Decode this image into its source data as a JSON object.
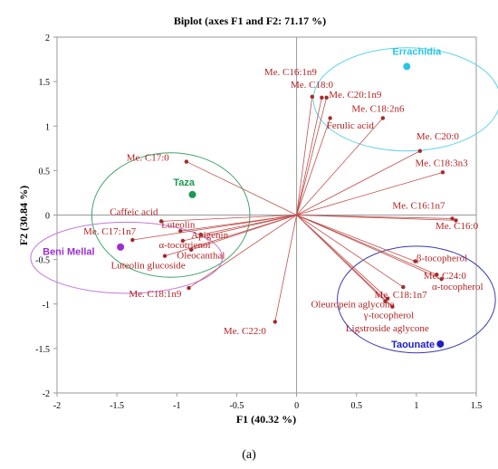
{
  "chart_data": {
    "type": "scatter",
    "title": "Biplot (axes F1 and F2: 71.17 %)",
    "xlabel": "F1 (40.32 %)",
    "ylabel": "F2 (30.84 %)",
    "xlim": [
      -2,
      1.5
    ],
    "ylim": [
      -2,
      2
    ],
    "xticks": [
      -2,
      -1.5,
      -1,
      -0.5,
      0,
      0.5,
      1,
      1.5
    ],
    "yticks": [
      -2,
      -1.5,
      -1,
      -0.5,
      0,
      0.5,
      1,
      1.5,
      2
    ],
    "grid": false,
    "caption": "(a)",
    "variables": [
      {
        "label": "Me. C16:1n9",
        "x": 0.13,
        "y": 1.33,
        "lx": -0.27,
        "ly": 1.57
      },
      {
        "label": "Me. C18:0",
        "x": 0.21,
        "y": 1.32,
        "lx": -0.05,
        "ly": 1.43
      },
      {
        "label": "Me. C20:1n9",
        "x": 0.25,
        "y": 1.32,
        "lx": 0.27,
        "ly": 1.32
      },
      {
        "label": "Me. C18:2n6",
        "x": 0.72,
        "y": 1.09,
        "lx": 0.46,
        "ly": 1.16
      },
      {
        "label": "Ferulic acid",
        "x": 0.28,
        "y": 1.09,
        "lx": 0.25,
        "ly": 0.97
      },
      {
        "label": "Me. C20:0",
        "x": 1.03,
        "y": 0.72,
        "lx": 1.0,
        "ly": 0.85
      },
      {
        "label": "Me. C18:3n3",
        "x": 1.22,
        "y": 0.48,
        "lx": 0.99,
        "ly": 0.55
      },
      {
        "label": "Me. C16:1n7",
        "x": 1.3,
        "y": -0.04,
        "lx": 0.8,
        "ly": 0.07
      },
      {
        "label": "Me. C16:0",
        "x": 1.33,
        "y": -0.06,
        "lx": 1.16,
        "ly": -0.16
      },
      {
        "label": "β-tocopherol",
        "x": 0.99,
        "y": -0.52,
        "lx": 1.0,
        "ly": -0.52
      },
      {
        "label": "Me. C24:0",
        "x": 1.17,
        "y": -0.67,
        "lx": 1.06,
        "ly": -0.72
      },
      {
        "label": "α-tocopherol",
        "x": 1.21,
        "y": -0.72,
        "lx": 1.13,
        "ly": -0.84
      },
      {
        "label": "Me. C18:1n7",
        "x": 0.89,
        "y": -0.81,
        "lx": 0.65,
        "ly": -0.93
      },
      {
        "label": "Oleuropein aglycone",
        "x": 0.76,
        "y": -0.94,
        "lx": 0.12,
        "ly": -1.04
      },
      {
        "label": "γ-tocopherol",
        "x": 0.8,
        "y": -1.03,
        "lx": 0.56,
        "ly": -1.16
      },
      {
        "label": "Ligstroside aglycone",
        "x": 0.74,
        "y": -0.97,
        "lx": 0.41,
        "ly": -1.31
      },
      {
        "label": "Me. C22:0",
        "x": -0.18,
        "y": -1.2,
        "lx": -0.61,
        "ly": -1.34
      },
      {
        "label": "Me. C18:1n9",
        "x": -0.9,
        "y": -0.82,
        "lx": -1.4,
        "ly": -0.92
      },
      {
        "label": "Me. C17:0",
        "x": -0.92,
        "y": 0.6,
        "lx": -1.42,
        "ly": 0.61
      },
      {
        "label": "Caffeic acid",
        "x": -1.13,
        "y": -0.07,
        "lx": -1.56,
        "ly": 0.0
      },
      {
        "label": "Luteolin",
        "x": -0.97,
        "y": -0.18,
        "lx": -1.13,
        "ly": -0.14
      },
      {
        "label": "Me. C17:1n7",
        "x": -1.37,
        "y": -0.28,
        "lx": -1.78,
        "ly": -0.22
      },
      {
        "label": "Apigenin",
        "x": -0.8,
        "y": -0.22,
        "lx": -0.88,
        "ly": -0.26
      },
      {
        "label": "α-tocotrienol",
        "x": -0.95,
        "y": -0.29,
        "lx": -1.15,
        "ly": -0.37
      },
      {
        "label": "Oleocanthal",
        "x": -0.88,
        "y": -0.39,
        "lx": -1.0,
        "ly": -0.49
      },
      {
        "label": "Luteolin glucoside",
        "x": -1.1,
        "y": -0.46,
        "lx": -1.55,
        "ly": -0.6
      }
    ],
    "observations": [
      {
        "label": "Errachidia",
        "x": 0.92,
        "y": 1.67,
        "color": "#29c5e6",
        "lx": 0.8,
        "ly": 1.8
      },
      {
        "label": "Taza",
        "x": -0.87,
        "y": 0.23,
        "color": "#1a9a50",
        "lx": -1.03,
        "ly": 0.33
      },
      {
        "label": "Beni Mellal",
        "x": -1.47,
        "y": -0.36,
        "color": "#9b30d0",
        "lx": -2.12,
        "ly": -0.45
      },
      {
        "label": "Taounate",
        "x": 1.2,
        "y": -1.45,
        "color": "#2020c0",
        "lx": 0.79,
        "ly": -1.49
      }
    ],
    "groups": [
      {
        "name": "Errachidia",
        "cx": 0.92,
        "cy": 1.3,
        "rx": 0.78,
        "ry": 0.58,
        "color": "#5fd3ea"
      },
      {
        "name": "Taza",
        "cx": -1.05,
        "cy": 0.0,
        "rx": 0.66,
        "ry": 0.7,
        "color": "#3fa36a"
      },
      {
        "name": "Beni Mellal",
        "cx": -1.42,
        "cy": -0.48,
        "rx": 0.8,
        "ry": 0.4,
        "color": "#c27ad8"
      },
      {
        "name": "Taounate",
        "cx": 1.0,
        "cy": -0.95,
        "rx": 0.66,
        "ry": 0.6,
        "color": "#3a3ab0"
      }
    ]
  }
}
